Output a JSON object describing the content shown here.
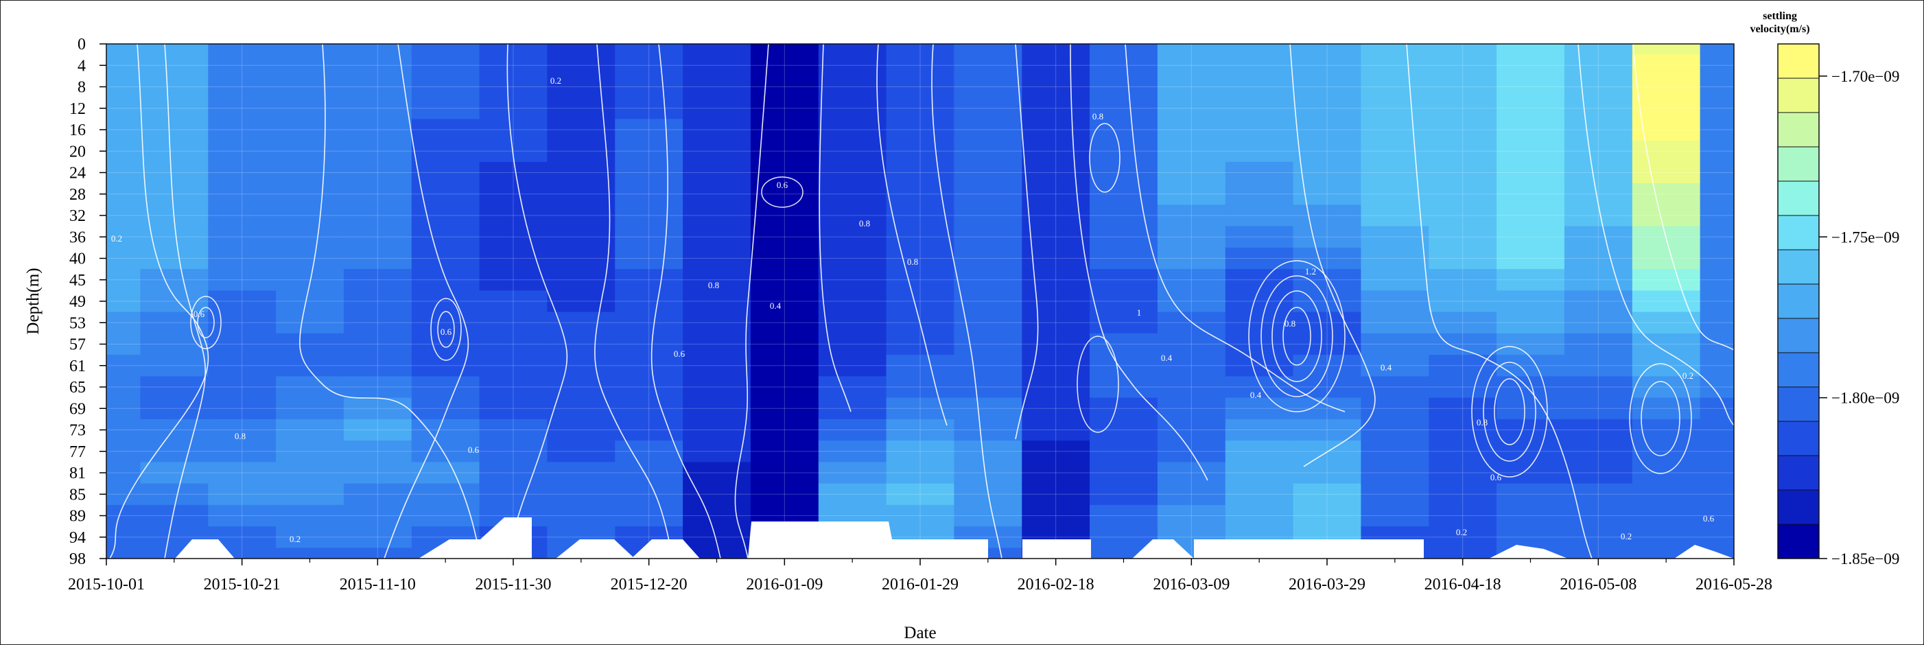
{
  "chart_data": {
    "type": "heatmap",
    "subtype": "filled-contour",
    "title": "",
    "xlabel": "Date",
    "ylabel": "Depth(m)",
    "x_ticks": [
      "2015-10-01",
      "2015-10-21",
      "2015-11-10",
      "2015-11-30",
      "2015-12-20",
      "2016-01-09",
      "2016-01-29",
      "2016-02-18",
      "2016-03-09",
      "2016-03-29",
      "2016-04-18",
      "2016-05-08",
      "2016-05-28"
    ],
    "y_ticks": [
      0,
      4,
      8,
      12,
      16,
      20,
      24,
      28,
      32,
      36,
      40,
      45,
      49,
      53,
      57,
      61,
      65,
      69,
      73,
      77,
      81,
      85,
      89,
      94,
      98
    ],
    "y_reversed": true,
    "grid": true,
    "colorbar": {
      "title_line1": "settling",
      "title_line2": "velocity(m/s)",
      "range": [
        -1.85e-09,
        -1.69e-09
      ],
      "tick_values": [
        -1.85e-09,
        -1.8e-09,
        -1.75e-09,
        -1.7e-09
      ],
      "tick_labels": [
        "−1.85e−09",
        "−1.80e−09",
        "−1.75e−09",
        "−1.70e−09"
      ],
      "levels": 14,
      "colors": [
        "#0000a8",
        "#0b1fc0",
        "#1637d6",
        "#2050e3",
        "#2a68ea",
        "#347fee",
        "#3f95f0",
        "#4aacf3",
        "#58c2f5",
        "#6fdff7",
        "#8ff5e6",
        "#aaf7c8",
        "#c9f9a6",
        "#ecfb86",
        "#fffc7a"
      ]
    },
    "contour_labels": [
      "0.2",
      "0.4",
      "0.6",
      "0.8",
      "1",
      "1.2"
    ],
    "columns": [
      {
        "date": "2015-10-01",
        "values": [
          -1.765,
          -1.765,
          -1.765,
          -1.765,
          -1.765,
          -1.765,
          -1.765,
          -1.765,
          -1.765,
          -1.765,
          -1.77,
          -1.77,
          -1.775,
          -1.78,
          -1.785,
          -1.79,
          -1.79,
          -1.795,
          -1.79,
          -1.79,
          -1.79,
          -1.795,
          -1.8,
          -1.8,
          -1.8
        ]
      },
      {
        "date": "2015-10-11",
        "values": [
          -1.77,
          -1.77,
          -1.77,
          -1.77,
          -1.77,
          -1.77,
          -1.77,
          -1.77,
          -1.77,
          -1.77,
          -1.775,
          -1.78,
          -1.785,
          -1.79,
          -1.795,
          -1.795,
          -1.8,
          -1.8,
          -1.795,
          -1.79,
          -1.785,
          -1.79,
          -1.8,
          -1.805,
          -1.805
        ]
      },
      {
        "date": "2015-10-21",
        "values": [
          -1.795,
          -1.795,
          -1.795,
          -1.795,
          -1.795,
          -1.795,
          -1.795,
          -1.795,
          -1.795,
          -1.795,
          -1.795,
          -1.795,
          -1.8,
          -1.8,
          -1.805,
          -1.805,
          -1.805,
          -1.8,
          -1.795,
          -1.79,
          -1.785,
          -1.785,
          -1.79,
          -1.8,
          -1.805
        ]
      },
      {
        "date": "2015-10-31",
        "values": [
          -1.79,
          -1.79,
          -1.79,
          -1.79,
          -1.79,
          -1.79,
          -1.79,
          -1.79,
          -1.79,
          -1.79,
          -1.79,
          -1.79,
          -1.795,
          -1.795,
          -1.8,
          -1.8,
          -1.795,
          -1.79,
          -1.785,
          -1.78,
          -1.78,
          -1.785,
          -1.79,
          -1.795,
          -1.8
        ]
      },
      {
        "date": "2015-11-10",
        "values": [
          -1.79,
          -1.79,
          -1.79,
          -1.79,
          -1.79,
          -1.79,
          -1.79,
          -1.79,
          -1.795,
          -1.795,
          -1.795,
          -1.8,
          -1.8,
          -1.8,
          -1.805,
          -1.8,
          -1.79,
          -1.78,
          -1.775,
          -1.78,
          -1.785,
          -1.79,
          -1.79,
          -1.795,
          -1.8
        ]
      },
      {
        "date": "2015-11-20",
        "values": [
          -1.805,
          -1.805,
          -1.805,
          -1.805,
          -1.81,
          -1.81,
          -1.81,
          -1.815,
          -1.815,
          -1.815,
          -1.815,
          -1.815,
          -1.815,
          -1.815,
          -1.815,
          -1.81,
          -1.805,
          -1.8,
          -1.795,
          -1.79,
          -1.785,
          -1.79,
          -1.795,
          -1.8,
          -1.805
        ]
      },
      {
        "date": "2015-11-30",
        "values": [
          -1.815,
          -1.815,
          -1.815,
          -1.815,
          -1.815,
          -1.815,
          -1.82,
          -1.82,
          -1.82,
          -1.82,
          -1.82,
          -1.82,
          -1.815,
          -1.815,
          -1.81,
          -1.81,
          -1.81,
          -1.81,
          -1.805,
          -1.8,
          -1.8,
          -1.8,
          -1.805,
          -1.81,
          -1.815
        ]
      },
      {
        "date": "2015-12-10",
        "values": [
          -1.825,
          -1.825,
          -1.825,
          -1.825,
          -1.825,
          -1.825,
          -1.825,
          -1.825,
          -1.825,
          -1.825,
          -1.82,
          -1.82,
          -1.82,
          -1.815,
          -1.815,
          -1.815,
          -1.815,
          -1.815,
          -1.815,
          -1.81,
          -1.805,
          -1.8,
          -1.8,
          -1.8,
          -1.805
        ]
      },
      {
        "date": "2015-12-20",
        "values": [
          -1.81,
          -1.81,
          -1.81,
          -1.81,
          -1.805,
          -1.805,
          -1.8,
          -1.8,
          -1.8,
          -1.8,
          -1.805,
          -1.81,
          -1.815,
          -1.815,
          -1.815,
          -1.815,
          -1.815,
          -1.815,
          -1.81,
          -1.805,
          -1.8,
          -1.8,
          -1.805,
          -1.81,
          -1.815
        ]
      },
      {
        "date": "2015-12-30",
        "values": [
          -1.825,
          -1.825,
          -1.825,
          -1.825,
          -1.825,
          -1.825,
          -1.825,
          -1.825,
          -1.825,
          -1.825,
          -1.825,
          -1.825,
          -1.825,
          -1.825,
          -1.825,
          -1.825,
          -1.825,
          -1.825,
          -1.825,
          -1.825,
          -1.83,
          -1.835,
          -1.835,
          -1.835,
          -1.835
        ]
      },
      {
        "date": "2016-01-09",
        "values": [
          -1.84,
          -1.84,
          -1.84,
          -1.84,
          -1.84,
          -1.84,
          -1.84,
          -1.84,
          -1.84,
          -1.84,
          -1.84,
          -1.84,
          -1.84,
          -1.84,
          -1.84,
          -1.84,
          -1.84,
          -1.84,
          -1.84,
          -1.84,
          -1.84,
          -1.84,
          -1.84,
          -1.84,
          -1.84
        ]
      },
      {
        "date": "2016-01-19",
        "values": [
          -1.82,
          -1.82,
          -1.82,
          -1.82,
          -1.82,
          -1.82,
          -1.82,
          -1.82,
          -1.82,
          -1.82,
          -1.82,
          -1.82,
          -1.82,
          -1.82,
          -1.82,
          -1.82,
          -1.815,
          -1.81,
          -1.8,
          -1.79,
          -1.78,
          -1.77,
          -1.77,
          -1.775,
          -1.78
        ]
      },
      {
        "date": "2016-01-29",
        "values": [
          -1.81,
          -1.81,
          -1.81,
          -1.81,
          -1.81,
          -1.81,
          -1.81,
          -1.81,
          -1.81,
          -1.81,
          -1.81,
          -1.81,
          -1.81,
          -1.81,
          -1.81,
          -1.805,
          -1.8,
          -1.79,
          -1.78,
          -1.77,
          -1.765,
          -1.76,
          -1.765,
          -1.77,
          -1.775
        ]
      },
      {
        "date": "2016-02-08",
        "values": [
          -1.805,
          -1.805,
          -1.805,
          -1.805,
          -1.805,
          -1.805,
          -1.805,
          -1.805,
          -1.805,
          -1.805,
          -1.805,
          -1.805,
          -1.805,
          -1.805,
          -1.805,
          -1.805,
          -1.8,
          -1.795,
          -1.79,
          -1.785,
          -1.78,
          -1.78,
          -1.785,
          -1.79,
          -1.8
        ]
      },
      {
        "date": "2016-02-18",
        "values": [
          -1.82,
          -1.82,
          -1.82,
          -1.82,
          -1.82,
          -1.82,
          -1.82,
          -1.82,
          -1.82,
          -1.82,
          -1.82,
          -1.82,
          -1.82,
          -1.82,
          -1.82,
          -1.82,
          -1.82,
          -1.825,
          -1.825,
          -1.83,
          -1.83,
          -1.83,
          -1.83,
          -1.83,
          -1.83
        ]
      },
      {
        "date": "2016-02-28",
        "values": [
          -1.8,
          -1.8,
          -1.8,
          -1.8,
          -1.8,
          -1.8,
          -1.8,
          -1.8,
          -1.8,
          -1.8,
          -1.805,
          -1.81,
          -1.815,
          -1.81,
          -1.805,
          -1.805,
          -1.805,
          -1.81,
          -1.81,
          -1.81,
          -1.81,
          -1.81,
          -1.805,
          -1.8,
          -1.8
        ]
      },
      {
        "date": "2016-03-09",
        "values": [
          -1.77,
          -1.77,
          -1.77,
          -1.77,
          -1.77,
          -1.77,
          -1.775,
          -1.775,
          -1.78,
          -1.78,
          -1.785,
          -1.79,
          -1.795,
          -1.8,
          -1.8,
          -1.8,
          -1.8,
          -1.8,
          -1.8,
          -1.8,
          -1.795,
          -1.79,
          -1.785,
          -1.78,
          -1.78
        ]
      },
      {
        "date": "2016-03-19",
        "values": [
          -1.775,
          -1.775,
          -1.775,
          -1.775,
          -1.775,
          -1.775,
          -1.78,
          -1.78,
          -1.785,
          -1.79,
          -1.8,
          -1.81,
          -1.815,
          -1.815,
          -1.815,
          -1.81,
          -1.8,
          -1.79,
          -1.78,
          -1.77,
          -1.765,
          -1.765,
          -1.765,
          -1.765,
          -1.765
        ]
      },
      {
        "date": "2016-03-29",
        "values": [
          -1.77,
          -1.77,
          -1.77,
          -1.77,
          -1.77,
          -1.77,
          -1.775,
          -1.775,
          -1.78,
          -1.785,
          -1.79,
          -1.8,
          -1.805,
          -1.81,
          -1.81,
          -1.805,
          -1.8,
          -1.79,
          -1.78,
          -1.77,
          -1.765,
          -1.76,
          -1.76,
          -1.76,
          -1.765
        ]
      },
      {
        "date": "2016-04-08",
        "values": [
          -1.76,
          -1.76,
          -1.76,
          -1.755,
          -1.755,
          -1.755,
          -1.755,
          -1.755,
          -1.76,
          -1.765,
          -1.77,
          -1.775,
          -1.78,
          -1.785,
          -1.79,
          -1.795,
          -1.8,
          -1.8,
          -1.8,
          -1.8,
          -1.8,
          -1.805,
          -1.805,
          -1.81,
          -1.81
        ]
      },
      {
        "date": "2016-04-18",
        "values": [
          -1.755,
          -1.755,
          -1.755,
          -1.755,
          -1.755,
          -1.755,
          -1.755,
          -1.755,
          -1.755,
          -1.755,
          -1.76,
          -1.765,
          -1.77,
          -1.78,
          -1.79,
          -1.8,
          -1.805,
          -1.81,
          -1.81,
          -1.81,
          -1.81,
          -1.81,
          -1.81,
          -1.81,
          -1.81
        ]
      },
      {
        "date": "2016-04-28",
        "values": [
          -1.745,
          -1.745,
          -1.745,
          -1.745,
          -1.745,
          -1.745,
          -1.745,
          -1.745,
          -1.745,
          -1.745,
          -1.75,
          -1.755,
          -1.765,
          -1.775,
          -1.785,
          -1.795,
          -1.8,
          -1.805,
          -1.81,
          -1.81,
          -1.81,
          -1.805,
          -1.805,
          -1.805,
          -1.805
        ]
      },
      {
        "date": "2016-05-08",
        "values": [
          -1.76,
          -1.76,
          -1.76,
          -1.76,
          -1.76,
          -1.76,
          -1.76,
          -1.76,
          -1.76,
          -1.765,
          -1.77,
          -1.775,
          -1.78,
          -1.785,
          -1.79,
          -1.795,
          -1.8,
          -1.805,
          -1.81,
          -1.81,
          -1.81,
          -1.805,
          -1.805,
          -1.805,
          -1.805
        ]
      },
      {
        "date": "2016-05-18",
        "values": [
          -1.705,
          -1.7,
          -1.7,
          -1.7,
          -1.7,
          -1.705,
          -1.71,
          -1.715,
          -1.72,
          -1.725,
          -1.73,
          -1.74,
          -1.745,
          -1.755,
          -1.765,
          -1.775,
          -1.785,
          -1.795,
          -1.8,
          -1.8,
          -1.8,
          -1.8,
          -1.8,
          -1.8,
          -1.8
        ]
      },
      {
        "date": "2016-05-28",
        "values": [
          -1.79,
          -1.79,
          -1.79,
          -1.79,
          -1.79,
          -1.79,
          -1.79,
          -1.79,
          -1.79,
          -1.79,
          -1.79,
          -1.79,
          -1.79,
          -1.79,
          -1.79,
          -1.79,
          -1.795,
          -1.8,
          -1.8,
          -1.8,
          -1.8,
          -1.8,
          -1.8,
          -1.8,
          -1.8
        ]
      }
    ],
    "value_scale_note": "column values in units of 1e-09 m/s"
  }
}
